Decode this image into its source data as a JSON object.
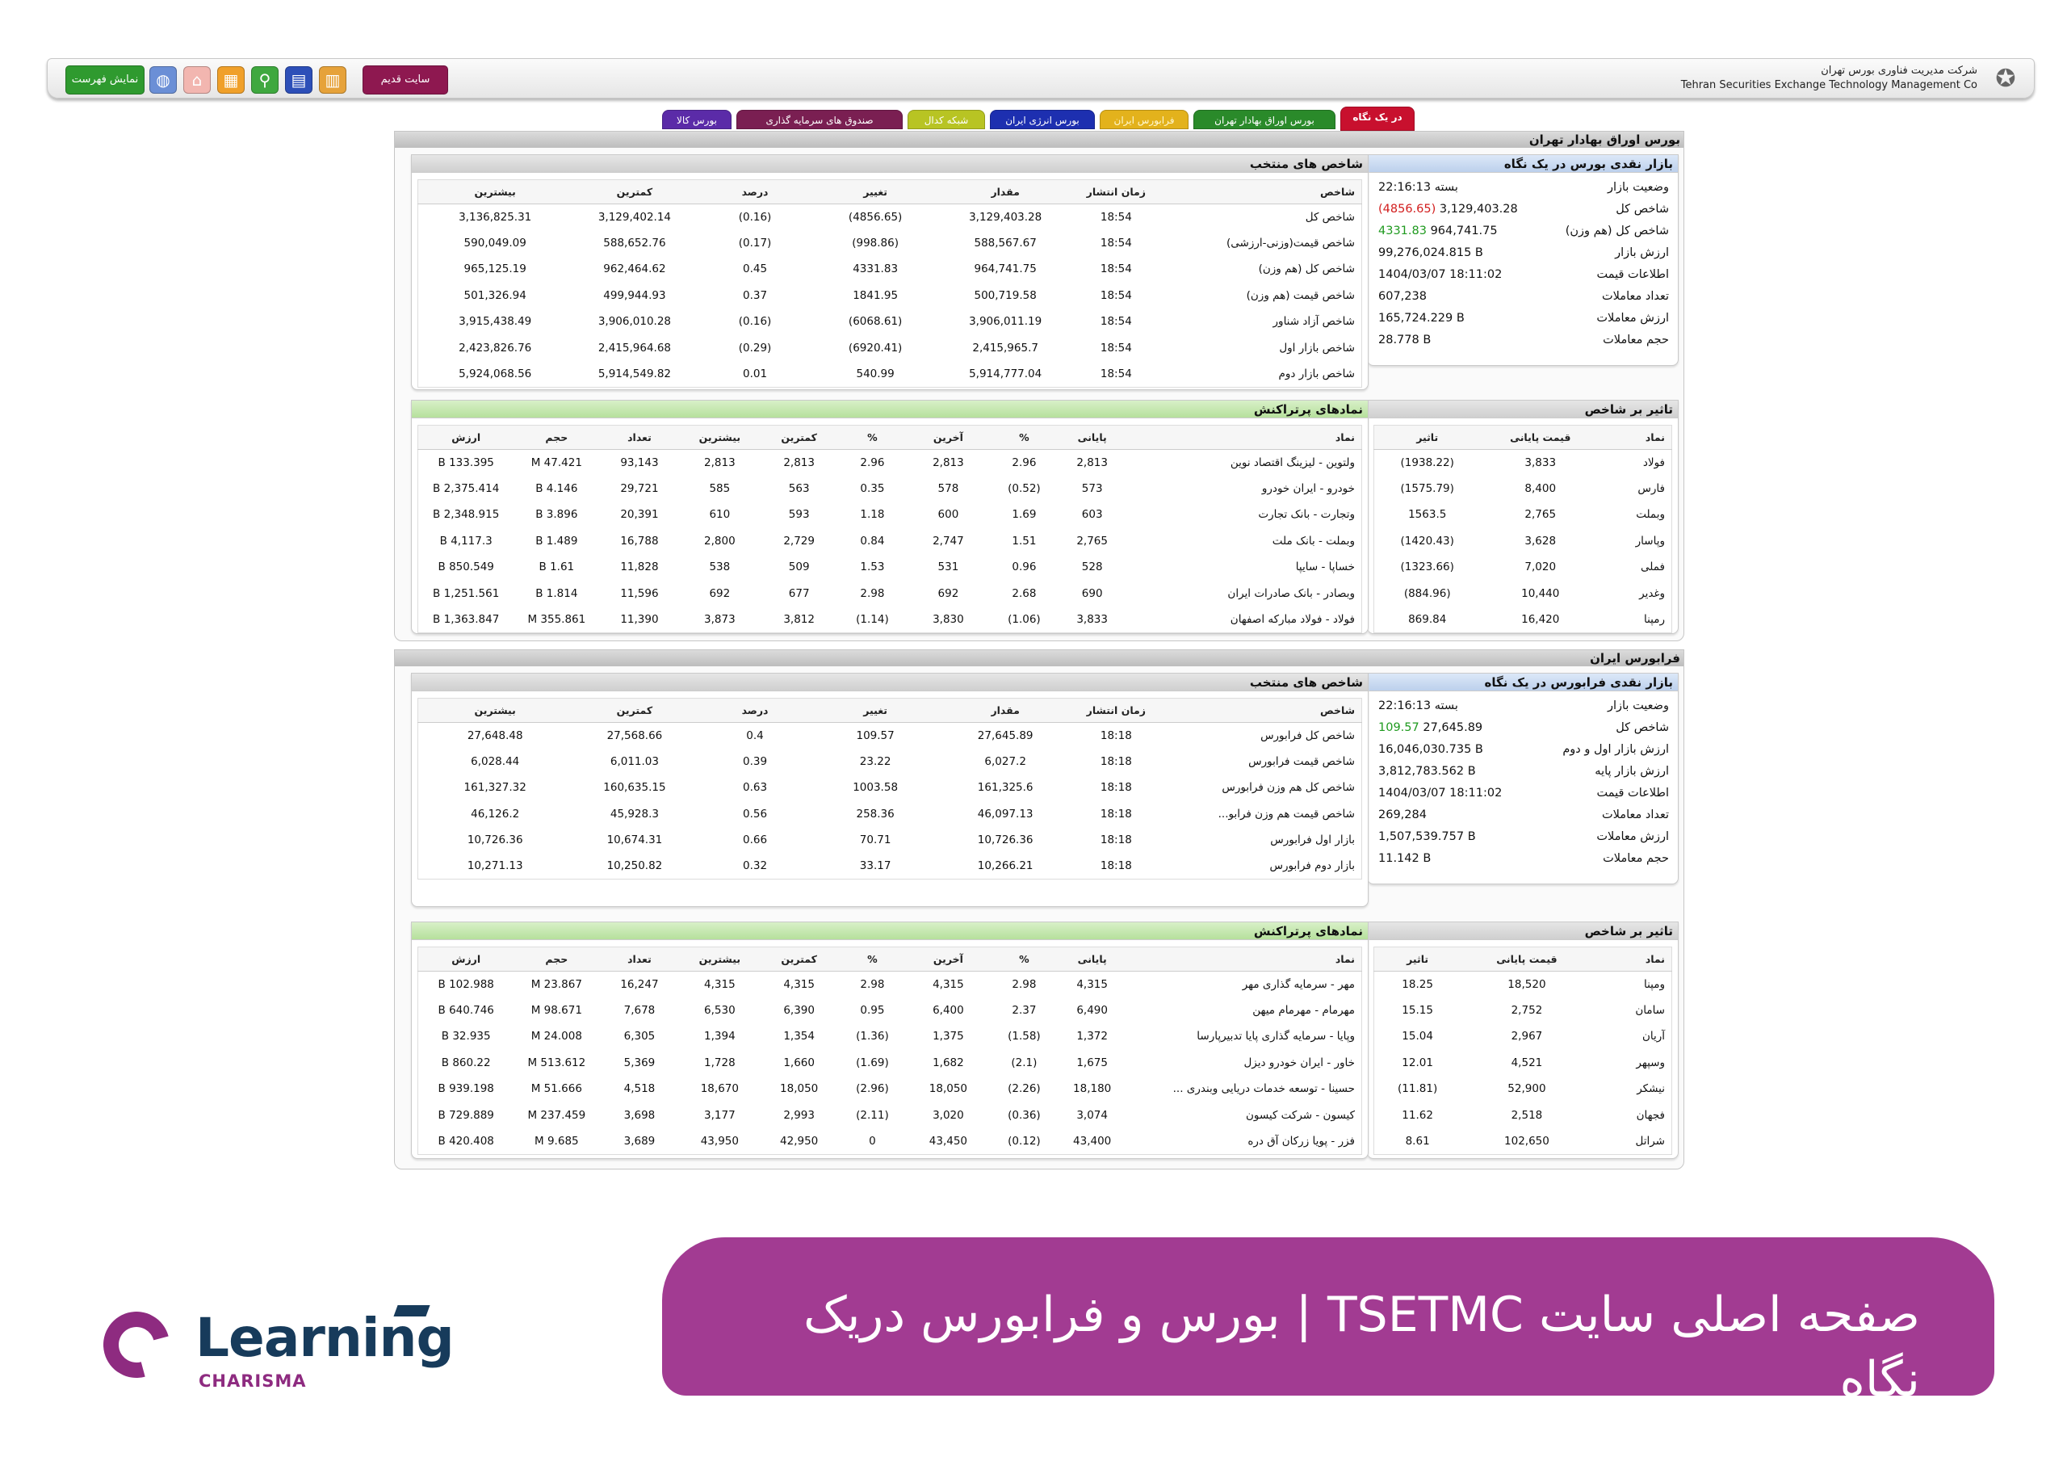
{
  "header": {
    "company_fa": "شرکت مدیریت فناوری بورس تهران",
    "company_en": "Tehran Securities Exchange Technology Management Co",
    "show_list": "نمایش فهرست",
    "old_site": "سایت قدیم",
    "icons": [
      "globe-icon",
      "home-icon",
      "calendar-icon",
      "search-icon",
      "chart-icon",
      "grid-icon"
    ]
  },
  "tabs": [
    {
      "label": "در یک نگاه",
      "color": "#c8102e"
    },
    {
      "label": "بورس اوراق بهادار تهران",
      "color": "#2a8a2a"
    },
    {
      "label": "فرابورس ایران",
      "color": "#e3b21c"
    },
    {
      "label": "بورس انرژی ایران",
      "color": "#1d2fb0"
    },
    {
      "label": "شبکه کدال",
      "color": "#b8c423"
    },
    {
      "label": "صندوق های سرمایه گذاری",
      "color": "#7a1f52"
    },
    {
      "label": "بورس کالا",
      "color": "#5b2ba8"
    }
  ],
  "markets": [
    {
      "title": "بورس اوراق بهادار تهران",
      "summary": {
        "title": "بازار نقدی بورس در یک نگاه",
        "rows": [
          {
            "label": "وضعیت بازار",
            "value": "بسته 22:16:13",
            "extra": ""
          },
          {
            "label": "شاخص کل",
            "value": "3,129,403.28",
            "extra": "(4856.65)",
            "extra_color": "neg"
          },
          {
            "label": "شاخص کل (هم وزن)",
            "value": "964,741.75",
            "extra": "4331.83",
            "extra_color": "pos"
          },
          {
            "label": "ارزش بازار",
            "value": "99,276,024.815 B",
            "extra": ""
          },
          {
            "label": "اطلاعات قیمت",
            "value": "1404/03/07 18:11:02",
            "extra": ""
          },
          {
            "label": "تعداد معاملات",
            "value": "607,238",
            "extra": ""
          },
          {
            "label": "ارزش معاملات",
            "value": "165,724.229 B",
            "extra": ""
          },
          {
            "label": "حجم معاملات",
            "value": "28.778 B",
            "extra": ""
          }
        ]
      },
      "indices": {
        "title": "شاخص های منتخب",
        "headers": [
          "شاخص",
          "زمان انتشار",
          "مقدار",
          "تغییر",
          "درصد",
          "کمترین",
          "بیشترین"
        ],
        "rows": [
          {
            "cells": [
              "شاخص کل",
              "18:54",
              "3,129,403.28",
              "(4856.65)",
              "(0.16)",
              "3,129,402.14",
              "3,136,825.31"
            ],
            "dir": "neg"
          },
          {
            "cells": [
              "شاخص قیمت(وزنی-ارزشی)",
              "18:54",
              "588,567.67",
              "(998.86)",
              "(0.17)",
              "588,652.76",
              "590,049.09"
            ],
            "dir": "neg"
          },
          {
            "cells": [
              "شاخص کل (هم وزن)",
              "18:54",
              "964,741.75",
              "4331.83",
              "0.45",
              "962,464.62",
              "965,125.19"
            ],
            "dir": "pos"
          },
          {
            "cells": [
              "شاخص قیمت (هم وزن)",
              "18:54",
              "500,719.58",
              "1841.95",
              "0.37",
              "499,944.93",
              "501,326.94"
            ],
            "dir": "pos"
          },
          {
            "cells": [
              "شاخص آزاد شناور",
              "18:54",
              "3,906,011.19",
              "(6068.61)",
              "(0.16)",
              "3,906,010.28",
              "3,915,438.49"
            ],
            "dir": "neg"
          },
          {
            "cells": [
              "شاخص بازار اول",
              "18:54",
              "2,415,965.7",
              "(6920.41)",
              "(0.29)",
              "2,415,964.68",
              "2,423,826.76"
            ],
            "dir": "neg"
          },
          {
            "cells": [
              "شاخص بازار دوم",
              "18:54",
              "5,914,777.04",
              "540.99",
              "0.01",
              "5,914,549.82",
              "5,924,068.56"
            ],
            "dir": "pos"
          }
        ]
      },
      "impact": {
        "title": "تاثیر بر شاخص",
        "headers": [
          "نماد",
          "قیمت پایانی",
          "تاثیر"
        ],
        "rows": [
          {
            "cells": [
              "فولاد",
              "3,833",
              "(1938.22)"
            ],
            "dir": "neg"
          },
          {
            "cells": [
              "فارس",
              "8,400",
              "(1575.79)"
            ],
            "dir": "neg"
          },
          {
            "cells": [
              "وبملت",
              "2,765",
              "1563.5"
            ],
            "dir": "pos"
          },
          {
            "cells": [
              "وپاسار",
              "3,628",
              "(1420.43)"
            ],
            "dir": "neg"
          },
          {
            "cells": [
              "فملی",
              "7,020",
              "(1323.66)"
            ],
            "dir": "neg"
          },
          {
            "cells": [
              "وغدیر",
              "10,440",
              "(884.96)"
            ],
            "dir": "neg"
          },
          {
            "cells": [
              "رمپنا",
              "16,420",
              "869.84"
            ],
            "dir": "pos"
          }
        ]
      },
      "symbols": {
        "title": "نمادهای پرتراکنش",
        "headers": [
          "نماد",
          "پایانی",
          "%",
          "آخرین",
          "%",
          "کمترین",
          "بیشترین",
          "تعداد",
          "حجم",
          "ارزش"
        ],
        "rows": [
          {
            "cells": [
              "ولتوین - لیزینگ اقتصاد نوین",
              "2,813",
              "2.96",
              "2,813",
              "2.96",
              "2,813",
              "2,813",
              "93,143",
              "47.421 M",
              "133.395 B"
            ],
            "d1": "pos",
            "d2": "pos"
          },
          {
            "cells": [
              "خودرو - ایران خودرو",
              "573",
              "(0.52)",
              "578",
              "0.35",
              "563",
              "585",
              "29,721",
              "4.146 B",
              "2,375.414 B"
            ],
            "d1": "neg",
            "d2": "pos"
          },
          {
            "cells": [
              "وتجارت - بانک تجارت",
              "603",
              "1.69",
              "600",
              "1.18",
              "593",
              "610",
              "20,391",
              "3.896 B",
              "2,348.915 B"
            ],
            "d1": "pos",
            "d2": "pos"
          },
          {
            "cells": [
              "وبملت - بانک ملت",
              "2,765",
              "1.51",
              "2,747",
              "0.84",
              "2,729",
              "2,800",
              "16,788",
              "1.489 B",
              "4,117.3 B"
            ],
            "d1": "pos",
            "d2": "pos"
          },
          {
            "cells": [
              "خساپا - سایپا",
              "528",
              "0.96",
              "531",
              "1.53",
              "509",
              "538",
              "11,828",
              "1.61 B",
              "850.549 B"
            ],
            "d1": "pos",
            "d2": "pos"
          },
          {
            "cells": [
              "وبصادر - بانک صادرات ایران",
              "690",
              "2.68",
              "692",
              "2.98",
              "677",
              "692",
              "11,596",
              "1.814 B",
              "1,251.561 B"
            ],
            "d1": "pos",
            "d2": "pos"
          },
          {
            "cells": [
              "فولاد - فولاد مبارکه اصفهان",
              "3,833",
              "(1.06)",
              "3,830",
              "(1.14)",
              "3,812",
              "3,873",
              "11,390",
              "355.861 M",
              "1,363.847 B"
            ],
            "d1": "neg",
            "d2": "neg"
          }
        ]
      }
    },
    {
      "title": "فرابورس ایران",
      "summary": {
        "title": "بازار نقدی فرابورس در یک نگاه",
        "rows": [
          {
            "label": "وضعیت بازار",
            "value": "بسته 22:16:13",
            "extra": ""
          },
          {
            "label": "شاخص کل",
            "value": "27,645.89",
            "extra": "109.57",
            "extra_color": "pos"
          },
          {
            "label": "ارزش بازار اول و دوم",
            "value": "16,046,030.735 B",
            "extra": ""
          },
          {
            "label": "ارزش بازار پایه",
            "value": "3,812,783.562 B",
            "extra": ""
          },
          {
            "label": "اطلاعات قیمت",
            "value": "1404/03/07 18:11:02",
            "extra": ""
          },
          {
            "label": "تعداد معاملات",
            "value": "269,284",
            "extra": ""
          },
          {
            "label": "ارزش معاملات",
            "value": "1,507,539.757 B",
            "extra": ""
          },
          {
            "label": "حجم معاملات",
            "value": "11.142 B",
            "extra": ""
          }
        ]
      },
      "indices": {
        "title": "شاخص های منتخب",
        "headers": [
          "شاخص",
          "زمان انتشار",
          "مقدار",
          "تغییر",
          "درصد",
          "کمترین",
          "بیشترین"
        ],
        "rows": [
          {
            "cells": [
              "شاخص کل فرابورس",
              "18:18",
              "27,645.89",
              "109.57",
              "0.4",
              "27,568.66",
              "27,648.48"
            ],
            "dir": "pos"
          },
          {
            "cells": [
              "شاخص قیمت فرابورس",
              "18:18",
              "6,027.2",
              "23.22",
              "0.39",
              "6,011.03",
              "6,028.44"
            ],
            "dir": "pos"
          },
          {
            "cells": [
              "شاخص کل هم وزن فرابورس",
              "18:18",
              "161,325.6",
              "1003.58",
              "0.63",
              "160,635.15",
              "161,327.32"
            ],
            "dir": "pos"
          },
          {
            "cells": [
              "شاخص قیمت هم وزن فرابو...",
              "18:18",
              "46,097.13",
              "258.36",
              "0.56",
              "45,928.3",
              "46,126.2"
            ],
            "dir": "pos"
          },
          {
            "cells": [
              "بازار اول فرابورس",
              "18:18",
              "10,726.36",
              "70.71",
              "0.66",
              "10,674.31",
              "10,726.36"
            ],
            "dir": "pos"
          },
          {
            "cells": [
              "بازار دوم فرابورس",
              "18:18",
              "10,266.21",
              "33.17",
              "0.32",
              "10,250.82",
              "10,271.13"
            ],
            "dir": "pos"
          }
        ]
      },
      "impact": {
        "title": "تاثیر بر شاخص",
        "headers": [
          "نماد",
          "قیمت پایانی",
          "تاثیر"
        ],
        "rows": [
          {
            "cells": [
              "ومپنا",
              "18,520",
              "18.25"
            ],
            "dir": "pos"
          },
          {
            "cells": [
              "سامان",
              "2,752",
              "15.15"
            ],
            "dir": "pos"
          },
          {
            "cells": [
              "آریان",
              "2,967",
              "15.04"
            ],
            "dir": "pos"
          },
          {
            "cells": [
              "وسپهر",
              "4,521",
              "12.01"
            ],
            "dir": "pos"
          },
          {
            "cells": [
              "نیشکر",
              "52,900",
              "(11.81)"
            ],
            "dir": "neg"
          },
          {
            "cells": [
              "فجهان",
              "2,518",
              "11.62"
            ],
            "dir": "pos"
          },
          {
            "cells": [
              "شراتل",
              "102,650",
              "8.61"
            ],
            "dir": "pos"
          }
        ]
      },
      "symbols": {
        "title": "نمادهای پرتراکنش",
        "headers": [
          "نماد",
          "پایانی",
          "%",
          "آخرین",
          "%",
          "کمترین",
          "بیشترین",
          "تعداد",
          "حجم",
          "ارزش"
        ],
        "rows": [
          {
            "cells": [
              "مهر - سرمایه گذاری مهر",
              "4,315",
              "2.98",
              "4,315",
              "2.98",
              "4,315",
              "4,315",
              "16,247",
              "23.867 M",
              "102.988 B"
            ],
            "d1": "pos",
            "d2": "pos"
          },
          {
            "cells": [
              "مهرمام - مهرمام میهن",
              "6,490",
              "2.37",
              "6,400",
              "0.95",
              "6,390",
              "6,530",
              "7,678",
              "98.671 M",
              "640.746 B"
            ],
            "d1": "pos",
            "d2": "pos"
          },
          {
            "cells": [
              "وپایا - سرمایه گذاری پایا تدبیرپارسا",
              "1,372",
              "(1.58)",
              "1,375",
              "(1.36)",
              "1,354",
              "1,394",
              "6,305",
              "24.008 M",
              "32.935 B"
            ],
            "d1": "neg",
            "d2": "neg"
          },
          {
            "cells": [
              "خاور - ایران خودرو دیزل",
              "1,675",
              "(2.1)",
              "1,682",
              "(1.69)",
              "1,660",
              "1,728",
              "5,369",
              "513.612 M",
              "860.22 B"
            ],
            "d1": "neg",
            "d2": "neg"
          },
          {
            "cells": [
              "حسینا - توسعه خدمات دریایی وبندری ...",
              "18,180",
              "(2.26)",
              "18,050",
              "(2.96)",
              "18,050",
              "18,670",
              "4,518",
              "51.666 M",
              "939.198 B"
            ],
            "d1": "neg",
            "d2": "neg"
          },
          {
            "cells": [
              "کیسون - شرکت کیسون",
              "3,074",
              "(0.36)",
              "3,020",
              "(2.11)",
              "2,993",
              "3,177",
              "3,698",
              "237.459 M",
              "729.889 B"
            ],
            "d1": "neg",
            "d2": "neg"
          },
          {
            "cells": [
              "فزر - پویا زرکان آق دره",
              "43,400",
              "(0.12)",
              "43,450",
              "0",
              "42,950",
              "43,950",
              "3,689",
              "9.685 M",
              "420.408 B"
            ],
            "d1": "neg",
            "d2": "none"
          }
        ]
      }
    }
  ],
  "banner": {
    "text": "صفحه اصلی سایت TSETMC | بورس و فرابورس دریک نگاه",
    "color": "#a23b92"
  },
  "brand": {
    "name": "Learning",
    "sub": "CHARISMA"
  }
}
